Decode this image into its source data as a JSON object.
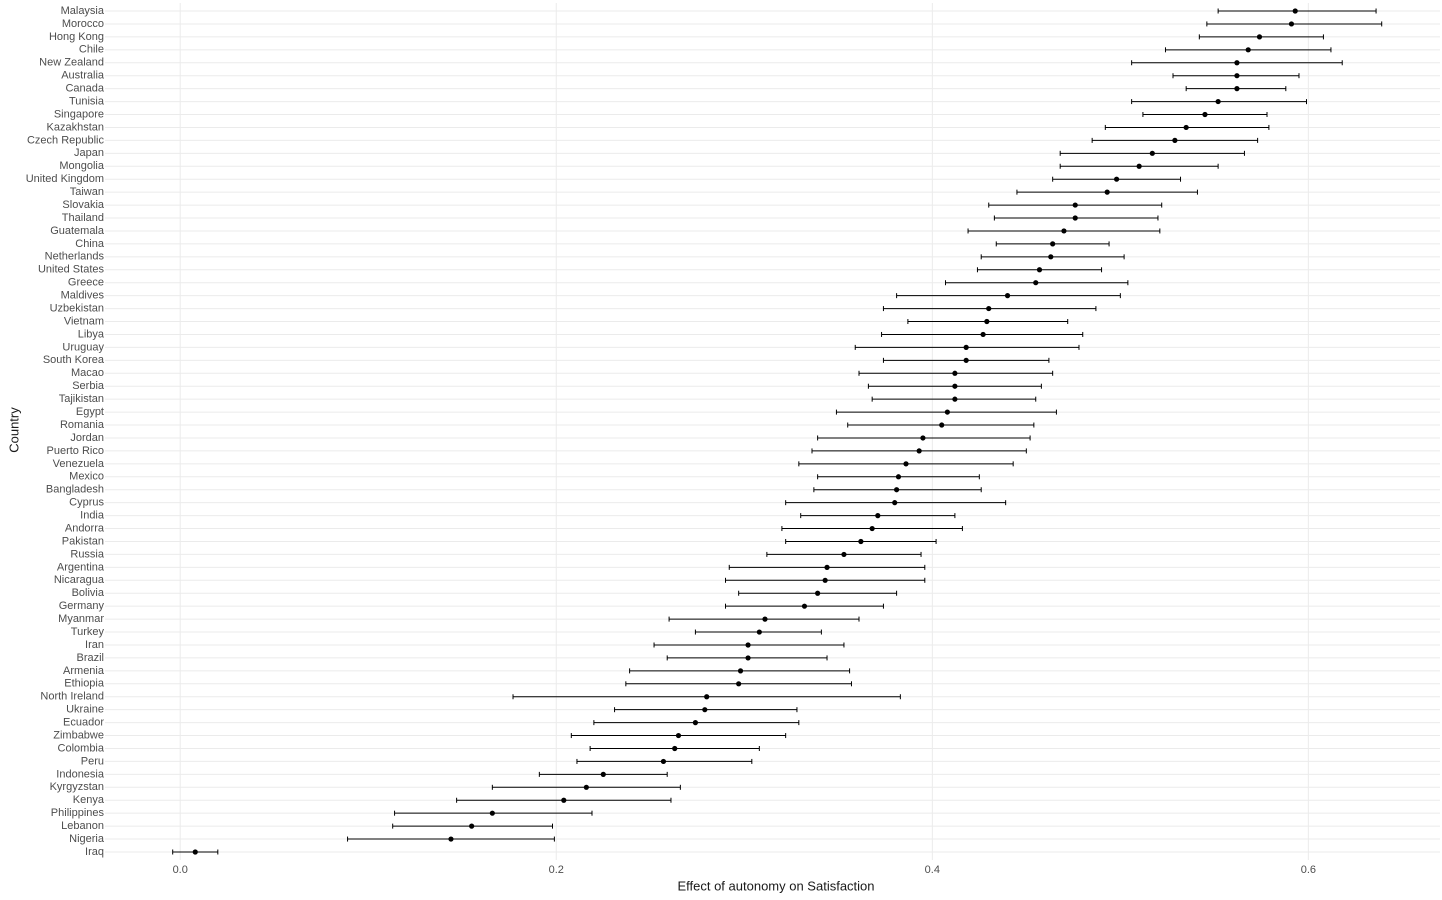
{
  "chart_data": {
    "type": "forest",
    "x_label": "Effect of autonomy on Satisfaction",
    "y_label": "Country",
    "categories": [
      "Malaysia",
      "Morocco",
      "Hong Kong",
      "Chile",
      "New Zealand",
      "Australia",
      "Canada",
      "Tunisia",
      "Singapore",
      "Kazakhstan",
      "Czech Republic",
      "Japan",
      "Mongolia",
      "United Kingdom",
      "Taiwan",
      "Slovakia",
      "Thailand",
      "Guatemala",
      "China",
      "Netherlands",
      "United States",
      "Greece",
      "Maldives",
      "Uzbekistan",
      "Vietnam",
      "Libya",
      "Uruguay",
      "South Korea",
      "Macao",
      "Serbia",
      "Tajikistan",
      "Egypt",
      "Romania",
      "Jordan",
      "Puerto Rico",
      "Venezuela",
      "Mexico",
      "Bangladesh",
      "Cyprus",
      "India",
      "Andorra",
      "Pakistan",
      "Russia",
      "Argentina",
      "Nicaragua",
      "Bolivia",
      "Germany",
      "Myanmar",
      "Turkey",
      "Iran",
      "Brazil",
      "Armenia",
      "Ethiopia",
      "North Ireland",
      "Ukraine",
      "Ecuador",
      "Zimbabwe",
      "Colombia",
      "Peru",
      "Indonesia",
      "Kyrgyzstan",
      "Kenya",
      "Philippines",
      "Lebanon",
      "Nigeria",
      "Iraq"
    ],
    "values": [
      0.593,
      0.591,
      0.574,
      0.568,
      0.562,
      0.562,
      0.562,
      0.552,
      0.545,
      0.535,
      0.529,
      0.517,
      0.51,
      0.498,
      0.493,
      0.476,
      0.476,
      0.47,
      0.464,
      0.463,
      0.457,
      0.455,
      0.44,
      0.43,
      0.429,
      0.427,
      0.418,
      0.418,
      0.412,
      0.412,
      0.412,
      0.408,
      0.405,
      0.395,
      0.393,
      0.386,
      0.382,
      0.381,
      0.38,
      0.371,
      0.368,
      0.362,
      0.353,
      0.344,
      0.343,
      0.339,
      0.332,
      0.311,
      0.308,
      0.302,
      0.302,
      0.298,
      0.297,
      0.28,
      0.279,
      0.274,
      0.265,
      0.263,
      0.257,
      0.225,
      0.216,
      0.204,
      0.166,
      0.155,
      0.144,
      0.008
    ],
    "lower": [
      0.552,
      0.546,
      0.542,
      0.524,
      0.506,
      0.528,
      0.535,
      0.506,
      0.512,
      0.492,
      0.485,
      0.468,
      0.468,
      0.464,
      0.445,
      0.43,
      0.433,
      0.419,
      0.434,
      0.426,
      0.424,
      0.407,
      0.381,
      0.374,
      0.387,
      0.373,
      0.359,
      0.374,
      0.361,
      0.366,
      0.368,
      0.349,
      0.355,
      0.339,
      0.336,
      0.329,
      0.339,
      0.337,
      0.322,
      0.33,
      0.32,
      0.322,
      0.312,
      0.292,
      0.29,
      0.297,
      0.29,
      0.26,
      0.274,
      0.252,
      0.259,
      0.239,
      0.237,
      0.177,
      0.231,
      0.22,
      0.208,
      0.218,
      0.211,
      0.191,
      0.166,
      0.147,
      0.114,
      0.113,
      0.089,
      -0.004
    ],
    "upper": [
      0.636,
      0.639,
      0.608,
      0.612,
      0.618,
      0.595,
      0.588,
      0.599,
      0.578,
      0.579,
      0.573,
      0.566,
      0.552,
      0.532,
      0.541,
      0.522,
      0.52,
      0.521,
      0.494,
      0.502,
      0.49,
      0.504,
      0.5,
      0.487,
      0.472,
      0.48,
      0.478,
      0.462,
      0.464,
      0.458,
      0.455,
      0.466,
      0.454,
      0.452,
      0.45,
      0.443,
      0.425,
      0.426,
      0.439,
      0.412,
      0.416,
      0.402,
      0.394,
      0.396,
      0.396,
      0.381,
      0.374,
      0.361,
      0.341,
      0.353,
      0.344,
      0.356,
      0.357,
      0.383,
      0.328,
      0.329,
      0.322,
      0.308,
      0.304,
      0.259,
      0.266,
      0.261,
      0.219,
      0.198,
      0.199,
      0.02
    ],
    "color": "#000000",
    "xlim": [
      -0.04,
      0.67
    ],
    "xticks": [
      {
        "value": 0,
        "label": "0.0"
      },
      0.2,
      0.4,
      0.6
    ],
    "grid": true
  }
}
